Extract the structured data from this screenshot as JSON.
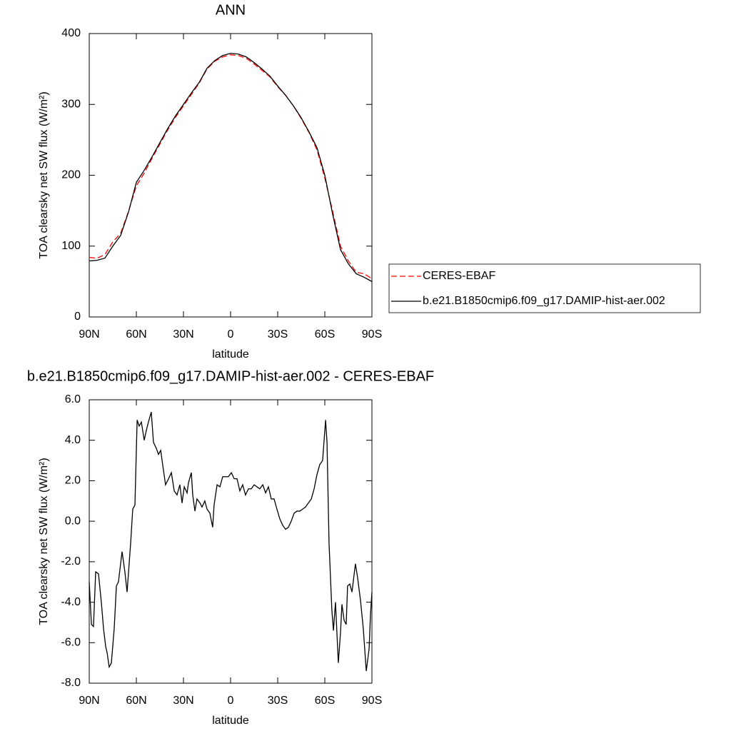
{
  "chart_data": [
    {
      "type": "line",
      "title": "ANN",
      "xlabel": "latitude",
      "ylabel": "TOA clearsky net SW flux (W/m²)",
      "x": [
        90,
        85,
        80,
        75,
        70,
        65,
        60,
        55,
        50,
        45,
        40,
        35,
        30,
        25,
        20,
        15,
        10,
        5,
        0,
        -5,
        -10,
        -15,
        -20,
        -25,
        -30,
        -35,
        -40,
        -45,
        -50,
        -55,
        -60,
        -65,
        -70,
        -75,
        -80,
        -85,
        -90
      ],
      "series": [
        {
          "name": "CERES-EBAF",
          "color": "#ff0000",
          "line_style": "dashed",
          "values": [
            84,
            83,
            88,
            106,
            118,
            149,
            185,
            203,
            224,
            244,
            264,
            282,
            298,
            314,
            330,
            350,
            361,
            367,
            370,
            369,
            365,
            357,
            348,
            339,
            325,
            313,
            298,
            280,
            260,
            236,
            196,
            149,
            100,
            79,
            63,
            61,
            54
          ]
        },
        {
          "name": "b.e21.B1850cmip6.f09_g17.DAMIP-hist-aer.002",
          "color": "#000000",
          "line_style": "solid",
          "values": [
            79,
            80,
            83,
            100,
            115,
            148,
            190,
            207,
            226,
            246,
            266,
            284,
            300,
            316,
            331,
            351,
            362,
            369,
            372,
            371,
            367,
            359,
            350,
            340,
            326,
            313,
            298,
            281,
            261,
            239,
            200,
            145,
            95,
            75,
            61,
            56,
            50
          ]
        }
      ],
      "xlim": [
        90,
        -90
      ],
      "xticks": [
        {
          "value": 90,
          "label": "90N"
        },
        {
          "value": 60,
          "label": "60N"
        },
        {
          "value": 30,
          "label": "30N"
        },
        0,
        {
          "value": -30,
          "label": "30S"
        },
        {
          "value": -60,
          "label": "60S"
        },
        {
          "value": -90,
          "label": "90S"
        }
      ],
      "ylim": [
        0,
        400
      ],
      "yticks": [
        0,
        100,
        200,
        300,
        400
      ],
      "legend": "right"
    },
    {
      "type": "line",
      "title": "b.e21.B1850cmip6.f09_g17.DAMIP-hist-aer.002 - CERES-EBAF",
      "xlabel": "latitude",
      "ylabel": "TOA clearsky net SW flux (W/m²)",
      "x": [
        90,
        88.6,
        87.3,
        85.9,
        84.1,
        82.3,
        80.9,
        79.5,
        78.6,
        77.3,
        75.9,
        74.1,
        72.7,
        71.4,
        69.1,
        67.3,
        65.9,
        63.6,
        62.3,
        60.9,
        59.5,
        58.2,
        56.8,
        55.0,
        53.6,
        52.3,
        50.5,
        49.1,
        47.3,
        45.9,
        44.5,
        42.7,
        41.4,
        39.5,
        37.7,
        35.9,
        34.1,
        32.3,
        30.9,
        29.5,
        27.7,
        26.8,
        25.0,
        24.1,
        22.7,
        21.4,
        19.5,
        18.2,
        16.4,
        15.0,
        13.2,
        11.4,
        10.5,
        8.6,
        6.8,
        5.0,
        3.2,
        1.4,
        -0.5,
        -2.3,
        -4.1,
        -5.9,
        -7.7,
        -9.5,
        -11.4,
        -13.2,
        -15.0,
        -16.8,
        -18.6,
        -20.5,
        -22.3,
        -24.1,
        -25.9,
        -27.7,
        -29.5,
        -31.4,
        -33.2,
        -35.0,
        -36.8,
        -38.6,
        -40.5,
        -42.3,
        -44.1,
        -45.9,
        -47.7,
        -49.5,
        -51.4,
        -53.2,
        -55.0,
        -56.8,
        -58.6,
        -60.5,
        -61.4,
        -62.7,
        -64.5,
        -65.5,
        -66.8,
        -68.6,
        -70.0,
        -70.9,
        -72.3,
        -73.6,
        -74.5,
        -75.9,
        -77.3,
        -79.5,
        -80.9,
        -82.7,
        -84.5,
        -86.4,
        -88.2,
        -89.1,
        -90
      ],
      "color": "#000000",
      "values": [
        -3.0,
        -5.1,
        -5.2,
        -2.5,
        -2.6,
        -4.0,
        -5.3,
        -6.2,
        -6.5,
        -7.2,
        -7.0,
        -5.3,
        -3.2,
        -3.0,
        -1.5,
        -2.5,
        -3.5,
        -1.05,
        0.6,
        0.8,
        5.0,
        4.7,
        4.9,
        4.0,
        4.5,
        4.9,
        5.4,
        3.9,
        3.6,
        3.3,
        3.5,
        2.5,
        1.8,
        2.1,
        2.4,
        1.5,
        1.3,
        1.8,
        0.9,
        1.7,
        1.4,
        1.9,
        2.4,
        1.3,
        0.5,
        1.1,
        0.9,
        0.7,
        1.0,
        0.6,
        0.4,
        -0.3,
        0.8,
        1.8,
        1.7,
        2.2,
        2.2,
        2.2,
        2.4,
        2.1,
        2.1,
        1.5,
        1.8,
        1.3,
        1.6,
        1.6,
        1.8,
        1.7,
        1.6,
        1.8,
        1.4,
        1.7,
        1.1,
        1.1,
        0.6,
        0.1,
        -0.2,
        -0.4,
        -0.3,
        0.0,
        0.4,
        0.5,
        0.5,
        0.6,
        0.7,
        0.9,
        1.1,
        1.6,
        2.3,
        2.8,
        3.0,
        5.0,
        3.9,
        -1.1,
        -4.4,
        -5.4,
        -4.0,
        -7.0,
        -5.5,
        -4.1,
        -4.9,
        -5.1,
        -3.2,
        -3.1,
        -3.5,
        -2.1,
        -2.8,
        -3.9,
        -5.3,
        -7.4,
        -6.3,
        -4.6,
        -3.5
      ],
      "xlim": [
        90,
        -90
      ],
      "xticks": [
        {
          "value": 90,
          "label": "90N"
        },
        {
          "value": 60,
          "label": "60N"
        },
        {
          "value": 30,
          "label": "30N"
        },
        0,
        {
          "value": -30,
          "label": "30S"
        },
        {
          "value": -60,
          "label": "60S"
        },
        {
          "value": -90,
          "label": "90S"
        }
      ],
      "ylim": [
        -8,
        6
      ],
      "yticks": [
        {
          "value": -8,
          "label": "-8.0"
        },
        {
          "value": -6,
          "label": "-6.0"
        },
        {
          "value": -4,
          "label": "-4.0"
        },
        {
          "value": -2,
          "label": "-2.0"
        },
        {
          "value": 0,
          "label": "0.0"
        },
        {
          "value": 2,
          "label": "2.0"
        },
        {
          "value": 4,
          "label": "4.0"
        },
        {
          "value": 6,
          "label": "6.0"
        }
      ]
    }
  ]
}
